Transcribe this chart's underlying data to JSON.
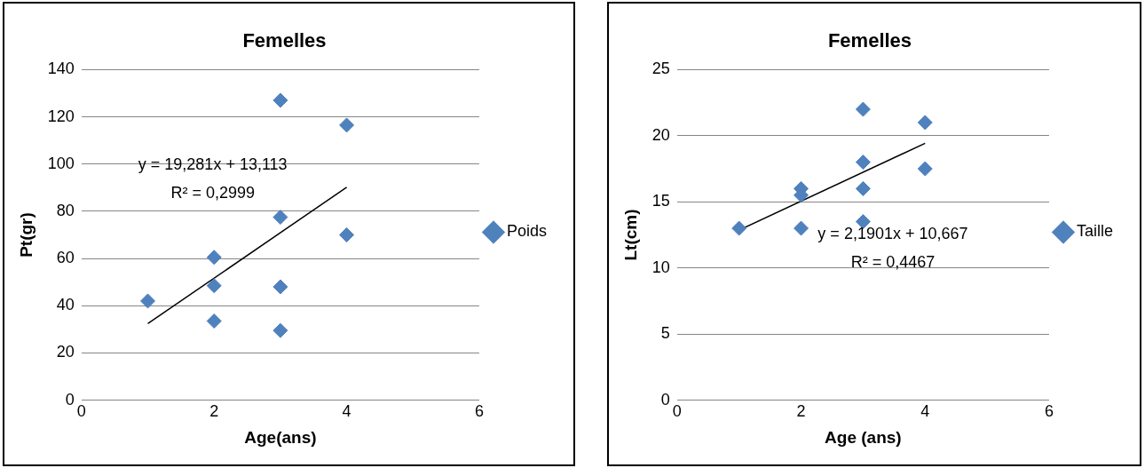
{
  "chart_data": [
    {
      "type": "scatter",
      "title": "Femelles",
      "xlabel": "Age(ans)",
      "ylabel": "Pt(gr)",
      "xlim": [
        0,
        6
      ],
      "xticks": [
        0,
        2,
        4,
        6
      ],
      "ylim": [
        0,
        140
      ],
      "yticks": [
        0,
        20,
        40,
        60,
        80,
        100,
        120,
        140
      ],
      "grid": "y",
      "legend": "right",
      "marker": "diamond",
      "series": [
        {
          "name": "Poids",
          "color": "#4f81bd",
          "x": [
            1,
            2,
            2,
            2,
            3,
            3,
            3,
            3,
            4,
            4
          ],
          "values": [
            42,
            60.5,
            48.5,
            33.5,
            127,
            77.5,
            48,
            29.5,
            116.5,
            70
          ]
        },
        {
          "type": "line",
          "marker": "none",
          "color": "#000000",
          "x": [
            1,
            4
          ],
          "values": [
            32.4,
            90.2
          ]
        }
      ],
      "annotations": [
        "y = 19,281x + 13,113",
        "R² = 0,2999"
      ]
    },
    {
      "type": "scatter",
      "title": "Femelles",
      "xlabel": "Age (ans)",
      "ylabel": "Lt(cm)",
      "xlim": [
        0,
        6
      ],
      "xticks": [
        0,
        2,
        4,
        6
      ],
      "ylim": [
        0,
        25
      ],
      "yticks": [
        0,
        5,
        10,
        15,
        20,
        25
      ],
      "grid": "y",
      "legend": "right",
      "marker": "diamond",
      "series": [
        {
          "name": "Taille",
          "color": "#4f81bd",
          "x": [
            1,
            2,
            2,
            2,
            3,
            3,
            3,
            3,
            4,
            4
          ],
          "values": [
            13,
            16,
            15.5,
            13,
            22,
            18,
            16,
            13.5,
            21,
            17.5
          ]
        },
        {
          "type": "line",
          "marker": "none",
          "color": "#000000",
          "x": [
            1,
            4
          ],
          "values": [
            12.86,
            19.43
          ]
        }
      ],
      "annotations": [
        "y = 2,1901x + 10,667",
        "R² = 0,4467"
      ]
    }
  ]
}
